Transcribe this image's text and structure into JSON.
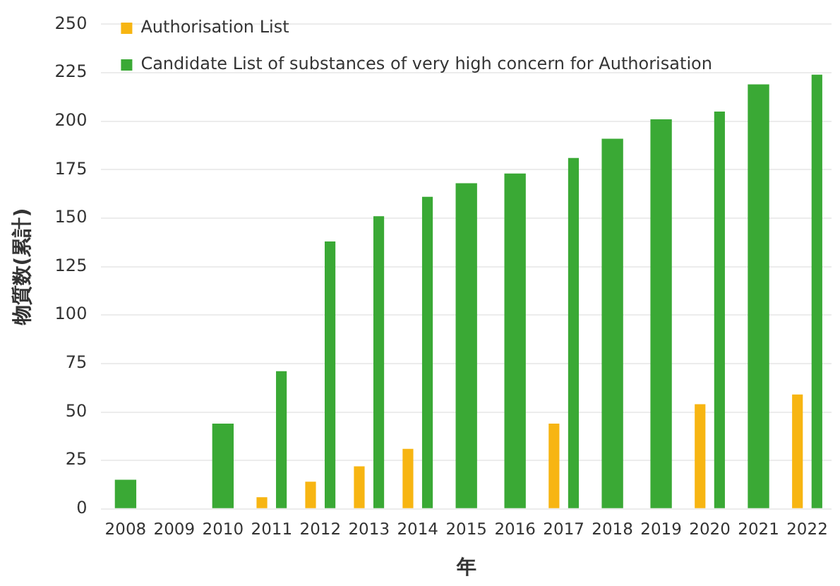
{
  "chart_data": {
    "type": "bar",
    "xlabel": "年",
    "ylabel": "物質数(累計)",
    "categories": [
      "2008",
      "2009",
      "2010",
      "2011",
      "2012",
      "2013",
      "2014",
      "2015",
      "2016",
      "2017",
      "2018",
      "2019",
      "2020",
      "2021",
      "2022"
    ],
    "series": [
      {
        "name": "Authorisation List",
        "color": "#f7b512",
        "values": [
          null,
          null,
          null,
          6,
          14,
          22,
          31,
          null,
          null,
          44,
          null,
          null,
          54,
          null,
          59
        ]
      },
      {
        "name": "Candidate List of substances of very high concern for Authorisation",
        "color": "#3aa935",
        "values": [
          15,
          null,
          44,
          71,
          138,
          151,
          161,
          168,
          173,
          181,
          191,
          201,
          205,
          219,
          224
        ]
      }
    ],
    "ylim": [
      0,
      250
    ],
    "yticks": [
      0,
      25,
      50,
      75,
      100,
      125,
      150,
      175,
      200,
      225,
      250
    ],
    "grid": "y",
    "legend": "top left"
  }
}
